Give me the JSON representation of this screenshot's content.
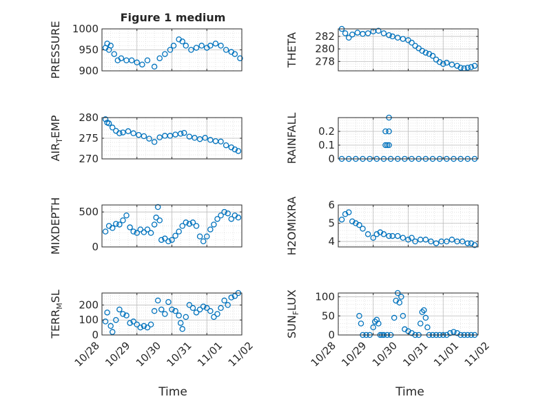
{
  "figure": {
    "title": "Figure 1 medium",
    "xlabel_left": "Time",
    "xlabel_right": "Time",
    "accent_color": "#0072BD",
    "x_tick_labels": [
      "10/28",
      "10/29",
      "10/30",
      "10/31",
      "11/01",
      "11/02"
    ]
  },
  "chart_data": [
    {
      "id": "pressure",
      "type": "scatter",
      "ylabel": "PRESSURE",
      "ylim": [
        900,
        1000
      ],
      "yticks": [
        900,
        950,
        1000
      ],
      "xlim": [
        0,
        4
      ],
      "x_unit": "days since 10/28",
      "x": [
        0.1,
        0.15,
        0.2,
        0.25,
        0.35,
        0.45,
        0.55,
        0.7,
        0.85,
        1.0,
        1.15,
        1.3,
        1.5,
        1.65,
        1.8,
        1.95,
        2.05,
        2.2,
        2.3,
        2.4,
        2.55,
        2.7,
        2.85,
        3.0,
        3.1,
        3.25,
        3.4,
        3.55,
        3.7,
        3.8,
        3.95
      ],
      "y": [
        955,
        965,
        950,
        960,
        940,
        925,
        930,
        925,
        925,
        920,
        915,
        925,
        910,
        930,
        940,
        950,
        960,
        975,
        970,
        960,
        950,
        955,
        960,
        955,
        960,
        965,
        960,
        950,
        945,
        940,
        930
      ]
    },
    {
      "id": "theta",
      "type": "scatter",
      "ylabel": "THETA",
      "ylim": [
        276.5,
        283.2
      ],
      "yticks": [
        278,
        280,
        282
      ],
      "xlim": [
        0,
        4
      ],
      "x_unit": "days since 10/28",
      "x": [
        0.1,
        0.2,
        0.3,
        0.4,
        0.55,
        0.7,
        0.85,
        1.0,
        1.15,
        1.3,
        1.45,
        1.55,
        1.7,
        1.85,
        2.0,
        2.1,
        2.2,
        2.3,
        2.4,
        2.5,
        2.6,
        2.7,
        2.8,
        2.9,
        3.0,
        3.1,
        3.25,
        3.4,
        3.5,
        3.6,
        3.7,
        3.8,
        3.9
      ],
      "y": [
        283.2,
        282.5,
        281.8,
        282.3,
        282.6,
        282.4,
        282.5,
        282.8,
        282.9,
        282.5,
        282.2,
        282.0,
        281.8,
        281.6,
        281.4,
        281.0,
        280.5,
        280.1,
        279.7,
        279.4,
        279.2,
        278.9,
        278.3,
        277.9,
        277.6,
        277.8,
        277.5,
        277.3,
        277.0,
        276.9,
        277.0,
        277.1,
        277.3
      ]
    },
    {
      "id": "air_temp",
      "type": "scatter",
      "ylabel": "AIR_TEMP",
      "ylim": [
        270,
        280
      ],
      "yticks": [
        270,
        275,
        280
      ],
      "xlim": [
        0,
        4
      ],
      "x_unit": "days since 10/28",
      "x": [
        0.1,
        0.15,
        0.2,
        0.3,
        0.4,
        0.5,
        0.6,
        0.75,
        0.9,
        1.05,
        1.2,
        1.35,
        1.5,
        1.65,
        1.8,
        1.95,
        2.1,
        2.25,
        2.35,
        2.5,
        2.65,
        2.8,
        2.95,
        3.1,
        3.25,
        3.4,
        3.55,
        3.7,
        3.8,
        3.9
      ],
      "y": [
        279.6,
        278.8,
        278.6,
        277.6,
        276.8,
        276.2,
        276.4,
        276.7,
        276.2,
        275.8,
        275.5,
        274.9,
        274.1,
        275.2,
        275.6,
        275.6,
        275.9,
        276.1,
        276.3,
        275.4,
        275.1,
        274.8,
        275.1,
        274.6,
        274.3,
        274.2,
        273.3,
        272.8,
        272.3,
        271.9
      ]
    },
    {
      "id": "rainfall",
      "type": "scatter",
      "ylabel": "RAINFALL",
      "ylim": [
        0,
        0.3
      ],
      "yticks": [
        0,
        0.1,
        0.2
      ],
      "xlim": [
        0,
        4
      ],
      "x_unit": "days since 10/28",
      "x": [
        0.1,
        0.3,
        0.5,
        0.7,
        0.9,
        1.1,
        1.3,
        1.5,
        1.7,
        1.9,
        2.1,
        2.3,
        2.5,
        2.7,
        2.9,
        3.1,
        3.3,
        3.5,
        3.7,
        3.9,
        1.35,
        1.4,
        1.45,
        1.35,
        1.45,
        1.45
      ],
      "y": [
        0,
        0,
        0,
        0,
        0,
        0,
        0,
        0,
        0,
        0,
        0,
        0,
        0,
        0,
        0,
        0,
        0,
        0,
        0,
        0,
        0.1,
        0.1,
        0.1,
        0.2,
        0.2,
        0.3
      ]
    },
    {
      "id": "mixdepth",
      "type": "scatter",
      "ylabel": "MIXDEPTH",
      "ylim": [
        0,
        600
      ],
      "yticks": [
        0,
        500
      ],
      "xlim": [
        0,
        4
      ],
      "x_unit": "days since 10/28",
      "x": [
        0.1,
        0.2,
        0.3,
        0.4,
        0.5,
        0.6,
        0.7,
        0.8,
        0.9,
        1.0,
        1.1,
        1.2,
        1.3,
        1.4,
        1.5,
        1.55,
        1.6,
        1.65,
        1.7,
        1.8,
        1.9,
        2.0,
        2.1,
        2.2,
        2.3,
        2.4,
        2.5,
        2.6,
        2.7,
        2.8,
        2.9,
        3.0,
        3.1,
        3.2,
        3.3,
        3.4,
        3.5,
        3.6,
        3.7,
        3.8,
        3.9
      ],
      "y": [
        220,
        300,
        270,
        330,
        320,
        380,
        450,
        280,
        220,
        200,
        250,
        210,
        250,
        200,
        320,
        420,
        570,
        380,
        100,
        120,
        80,
        100,
        160,
        220,
        300,
        350,
        330,
        350,
        300,
        150,
        80,
        150,
        250,
        320,
        400,
        450,
        500,
        480,
        400,
        450,
        420
      ]
    },
    {
      "id": "h2omixra",
      "type": "scatter",
      "ylabel": "H2OMIXRA",
      "ylim": [
        3.7,
        6
      ],
      "yticks": [
        4,
        5,
        6
      ],
      "xlim": [
        0,
        4
      ],
      "x_unit": "days since 10/28",
      "x": [
        0.1,
        0.2,
        0.3,
        0.4,
        0.5,
        0.6,
        0.7,
        0.85,
        1.0,
        1.1,
        1.2,
        1.3,
        1.45,
        1.55,
        1.7,
        1.85,
        2.0,
        2.1,
        2.2,
        2.35,
        2.5,
        2.65,
        2.8,
        2.95,
        3.1,
        3.25,
        3.4,
        3.55,
        3.7,
        3.8,
        3.9
      ],
      "y": [
        5.2,
        5.5,
        5.6,
        5.1,
        5.0,
        4.9,
        4.7,
        4.4,
        4.2,
        4.4,
        4.5,
        4.4,
        4.3,
        4.3,
        4.3,
        4.2,
        4.1,
        4.2,
        4.0,
        4.1,
        4.1,
        4.0,
        3.9,
        4.0,
        4.0,
        4.1,
        4.0,
        4.0,
        3.9,
        3.9,
        3.8
      ]
    },
    {
      "id": "terr_msl",
      "type": "scatter",
      "ylabel": "TERR_MSL",
      "ylim": [
        0,
        280
      ],
      "yticks": [
        0,
        100,
        200
      ],
      "xlim": [
        0,
        4
      ],
      "x_unit": "days since 10/28",
      "x": [
        0.1,
        0.15,
        0.25,
        0.3,
        0.4,
        0.5,
        0.6,
        0.7,
        0.8,
        0.9,
        1.0,
        1.1,
        1.2,
        1.3,
        1.4,
        1.5,
        1.6,
        1.7,
        1.8,
        1.9,
        2.0,
        2.1,
        2.2,
        2.25,
        2.3,
        2.4,
        2.5,
        2.6,
        2.7,
        2.8,
        2.9,
        3.0,
        3.1,
        3.2,
        3.3,
        3.4,
        3.5,
        3.6,
        3.7,
        3.8,
        3.9
      ],
      "y": [
        90,
        150,
        60,
        20,
        100,
        170,
        140,
        130,
        80,
        90,
        70,
        50,
        60,
        50,
        70,
        160,
        230,
        170,
        140,
        220,
        170,
        160,
        130,
        80,
        40,
        120,
        200,
        180,
        150,
        170,
        190,
        180,
        160,
        120,
        140,
        180,
        230,
        200,
        250,
        260,
        280
      ]
    },
    {
      "id": "sun_flux",
      "type": "scatter",
      "ylabel": "SUN_FLUX",
      "ylim": [
        0,
        110
      ],
      "yticks": [
        0,
        50,
        100
      ],
      "xlim": [
        0,
        4
      ],
      "x_unit": "days since 10/28",
      "x": [
        0.6,
        0.65,
        0.7,
        0.8,
        0.9,
        1.0,
        1.05,
        1.1,
        1.15,
        1.2,
        1.25,
        1.3,
        1.4,
        1.5,
        1.6,
        1.65,
        1.7,
        1.75,
        1.8,
        1.85,
        1.9,
        2.0,
        2.1,
        2.2,
        2.3,
        2.35,
        2.4,
        2.45,
        2.5,
        2.55,
        2.6,
        2.7,
        2.8,
        2.9,
        3.0,
        3.1,
        3.2,
        3.3,
        3.4,
        3.5,
        3.6,
        3.7,
        3.8,
        3.9
      ],
      "y": [
        50,
        30,
        0,
        0,
        0,
        20,
        35,
        40,
        30,
        0,
        0,
        0,
        0,
        0,
        45,
        90,
        110,
        85,
        100,
        50,
        15,
        10,
        5,
        0,
        0,
        30,
        60,
        65,
        45,
        20,
        0,
        0,
        0,
        0,
        0,
        0,
        5,
        8,
        5,
        0,
        0,
        0,
        0,
        0
      ]
    }
  ]
}
